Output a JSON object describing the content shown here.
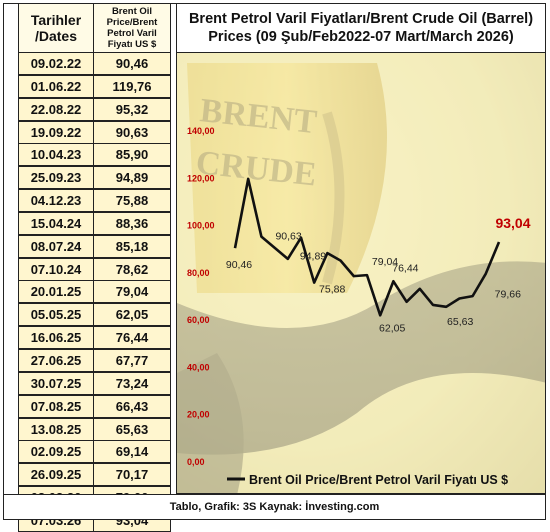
{
  "table": {
    "header_date": "Tarihler /Dates",
    "header_price": "Brent Oil Price/Brent Petrol Varil Fiyatı US $",
    "rows": [
      {
        "date": "09.02.22",
        "value": "90,46"
      },
      {
        "date": "01.06.22",
        "value": "119,76"
      },
      {
        "date": "22.08.22",
        "value": "95,32"
      },
      {
        "date": "19.09.22",
        "value": "90,63"
      },
      {
        "date": "10.04.23",
        "value": "85,90"
      },
      {
        "date": "25.09.23",
        "value": "94,89"
      },
      {
        "date": "04.12.23",
        "value": "75,88"
      },
      {
        "date": "15.04.24",
        "value": "88,36"
      },
      {
        "date": "08.07.24",
        "value": "85,18"
      },
      {
        "date": "07.10.24",
        "value": "78,62"
      },
      {
        "date": "20.01.25",
        "value": "79,04"
      },
      {
        "date": "05.05.25",
        "value": "62,05"
      },
      {
        "date": "16.06.25",
        "value": "76,44"
      },
      {
        "date": "27.06.25",
        "value": "67,77"
      },
      {
        "date": "30.07.25",
        "value": "73,24"
      },
      {
        "date": "07.08.25",
        "value": "66,43"
      },
      {
        "date": "13.08.25",
        "value": "65,63"
      },
      {
        "date": "02.09.25",
        "value": "69,14"
      },
      {
        "date": "26.09.25",
        "value": "70,17"
      },
      {
        "date": "02.03.26",
        "value": "79,66"
      },
      {
        "date": "07.03.26",
        "value": "93,04"
      }
    ]
  },
  "footer": "Tablo, Grafik: 3S  Kaynak: İnvesting.com",
  "background_text": {
    "line1": "BRENT",
    "line2": "CRUDE"
  },
  "colors": {
    "line": "#111111",
    "axis_label": "#c00000",
    "highlight": "#c00000",
    "cell_bg": "#fff6cf"
  },
  "chart_data": {
    "type": "line",
    "title": "Brent Petrol Varil Fiyatları/Brent Crude Oil (Barrel) Prices (09 Şub/Feb2022-07 Mart/March 2026)",
    "legend": "Brent Oil Price/Brent Petrol Varil Fiyatı US $",
    "legend_position": "bottom",
    "x": [
      "09.02.22",
      "01.06.22",
      "22.08.22",
      "19.09.22",
      "10.04.23",
      "25.09.23",
      "04.12.23",
      "15.04.24",
      "08.07.24",
      "07.10.24",
      "20.01.25",
      "05.05.25",
      "16.06.25",
      "27.06.25",
      "30.07.25",
      "07.08.25",
      "13.08.25",
      "02.09.25",
      "26.09.25",
      "02.03.26",
      "07.03.26"
    ],
    "values": [
      90.46,
      119.76,
      95.32,
      90.63,
      85.9,
      94.89,
      75.88,
      88.36,
      85.18,
      78.62,
      79.04,
      62.05,
      76.44,
      67.77,
      73.24,
      66.43,
      65.63,
      69.14,
      70.17,
      79.66,
      93.04
    ],
    "ylim": [
      0,
      140
    ],
    "yticks": [
      "0,00",
      "20,00",
      "40,00",
      "60,00",
      "80,00",
      "100,00",
      "120,00",
      "140,00"
    ],
    "data_labels": [
      {
        "index": 0,
        "text": "90,46"
      },
      {
        "index": 3,
        "text": "90,63"
      },
      {
        "index": 5,
        "text": "94,89"
      },
      {
        "index": 6,
        "text": "75,88"
      },
      {
        "index": 10,
        "text": "79,04"
      },
      {
        "index": 11,
        "text": "62,05"
      },
      {
        "index": 12,
        "text": "76,44"
      },
      {
        "index": 16,
        "text": "65,63"
      },
      {
        "index": 19,
        "text": "79,66"
      },
      {
        "index": 20,
        "text": "93,04"
      }
    ],
    "grid": false
  }
}
